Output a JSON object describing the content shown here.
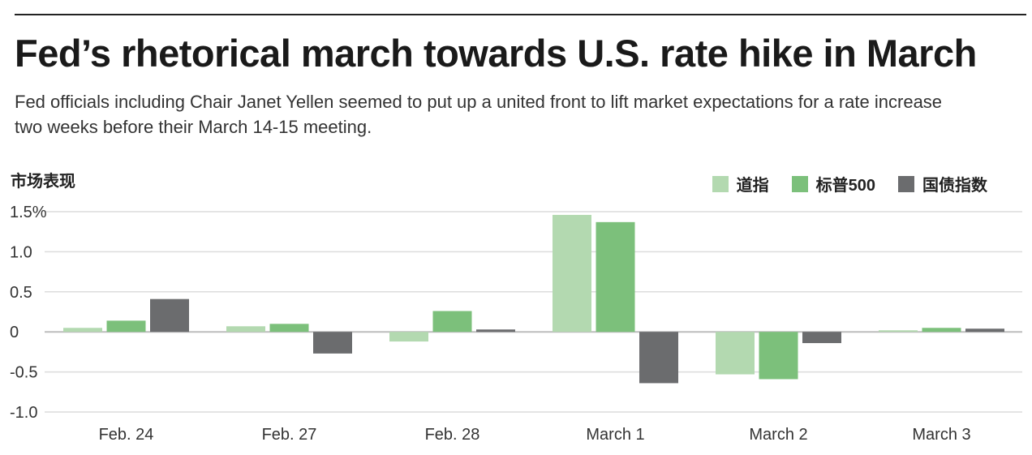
{
  "header": {
    "title": "Fed’s rhetorical march towards U.S. rate hike in March",
    "subtitle": "Fed officials including Chair Janet Yellen seemed to put up a united front to lift market expectations for a rate increase two weeks before their March 14-15 meeting."
  },
  "chart_data": {
    "type": "bar",
    "ylabel": "市场表现",
    "categories": [
      "Feb. 24",
      "Feb. 27",
      "Feb. 28",
      "March 1",
      "March 2",
      "March 3"
    ],
    "series": [
      {
        "name": "道指",
        "color": "#b3d9b0",
        "values": [
          0.05,
          0.07,
          -0.12,
          1.46,
          -0.53,
          0.02
        ]
      },
      {
        "name": "标普500",
        "color": "#7cc07b",
        "values": [
          0.14,
          0.1,
          0.26,
          1.37,
          -0.59,
          0.05
        ]
      },
      {
        "name": "国债指数",
        "color": "#6b6c6e",
        "values": [
          0.41,
          -0.27,
          0.03,
          -0.64,
          -0.14,
          0.04
        ]
      }
    ],
    "ylim": [
      -1.0,
      1.5
    ],
    "yticks": [
      1.5,
      1.0,
      0.5,
      0,
      -0.5,
      -1.0
    ],
    "ytick_labels": [
      "1.5%",
      "1.0",
      "0.5",
      "0",
      "-0.5",
      "-1.0"
    ],
    "grid": true,
    "legend_position": "top-right"
  }
}
